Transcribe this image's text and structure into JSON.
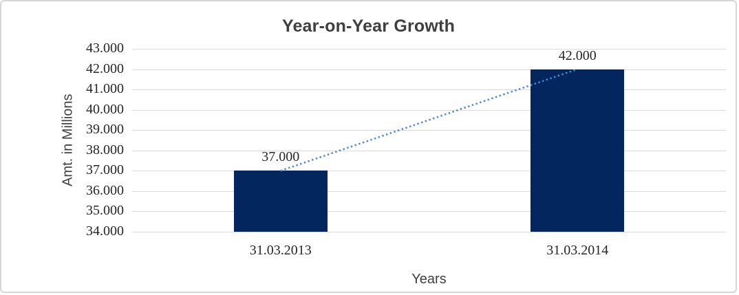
{
  "chart_data": {
    "type": "bar",
    "title": "Year-on-Year Growth",
    "xlabel": "Years",
    "ylabel": "Amt. in Millions",
    "categories": [
      "31.03.2013",
      "31.03.2014"
    ],
    "values": [
      37000,
      42000
    ],
    "value_labels": [
      "37.000",
      "42.000"
    ],
    "ylim": [
      34000,
      43000
    ],
    "ytick_step": 1000,
    "ytick_labels": [
      "34.000",
      "35.000",
      "36.000",
      "37.000",
      "38.000",
      "39.000",
      "40.000",
      "41.000",
      "42.000",
      "43.000"
    ],
    "grid": true,
    "legend": "none",
    "trendline": {
      "style": "dotted",
      "from_value": 37000,
      "to_value": 42000,
      "color": "#4e8ad4"
    },
    "colors": {
      "bar": "#03265e",
      "gridline": "#d9d9d9",
      "title_text": "#3f3f3f",
      "axis_title_text": "#404040",
      "tick_text": "#262626",
      "frame_border": "#d6d6d6"
    }
  }
}
